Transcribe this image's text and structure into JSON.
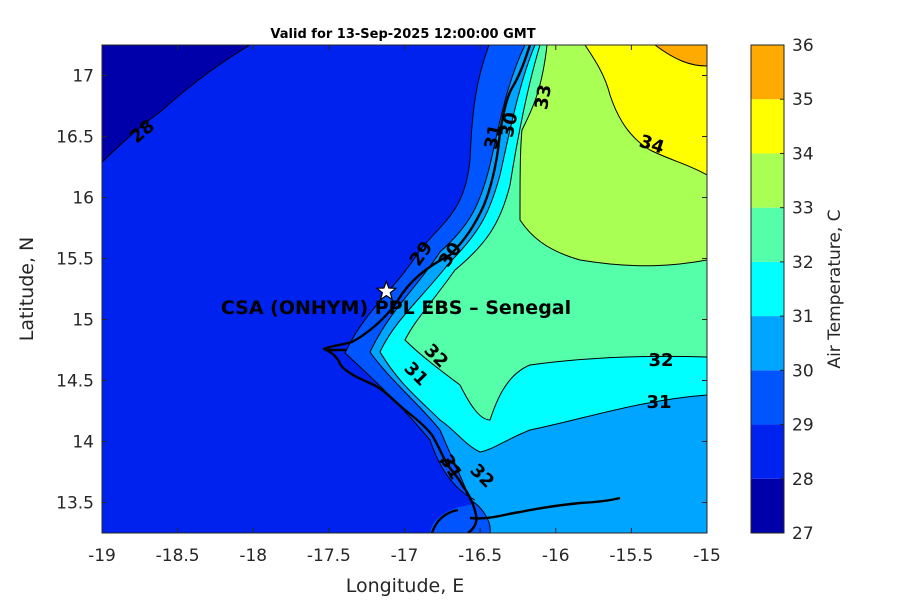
{
  "title": "Valid for 13-Sep-2025 12:00:00 GMT",
  "xlabel": "Longitude, E",
  "ylabel": "Latitude, N",
  "colorbar_label": "Air Temperature, C",
  "site_label": "CSA (ONHYM) PPL EBS  – Senegal",
  "x_ticks": [
    "-19",
    "-18.5",
    "-18",
    "-17.5",
    "-17",
    "-16.5",
    "-16",
    "-15.5",
    "-15"
  ],
  "y_ticks": [
    "13.5",
    "14",
    "14.5",
    "15",
    "15.5",
    "16",
    "16.5",
    "17"
  ],
  "colorbar_ticks": [
    "27",
    "28",
    "29",
    "30",
    "31",
    "32",
    "33",
    "34",
    "35",
    "36"
  ],
  "contour_labels": [
    "28",
    "29",
    "30",
    "31",
    "32",
    "33",
    "34",
    "32",
    "31",
    "32",
    "31",
    "29",
    "30",
    "31",
    "32"
  ],
  "colors": {
    "c27": "#0000aa",
    "c28": "#0022ee",
    "c29": "#0055ff",
    "c30": "#00a5ff",
    "c31": "#00ffff",
    "c32": "#55ffaa",
    "c33": "#aaff55",
    "c34": "#ffff00",
    "c35": "#ffaa00",
    "c36": "#ff5500"
  },
  "map_data": {
    "xlim": [
      -19,
      -15
    ],
    "ylim": [
      13.25,
      17.25
    ],
    "clim": [
      27,
      36
    ],
    "site": {
      "lon": -17.12,
      "lat": 15.23
    }
  }
}
